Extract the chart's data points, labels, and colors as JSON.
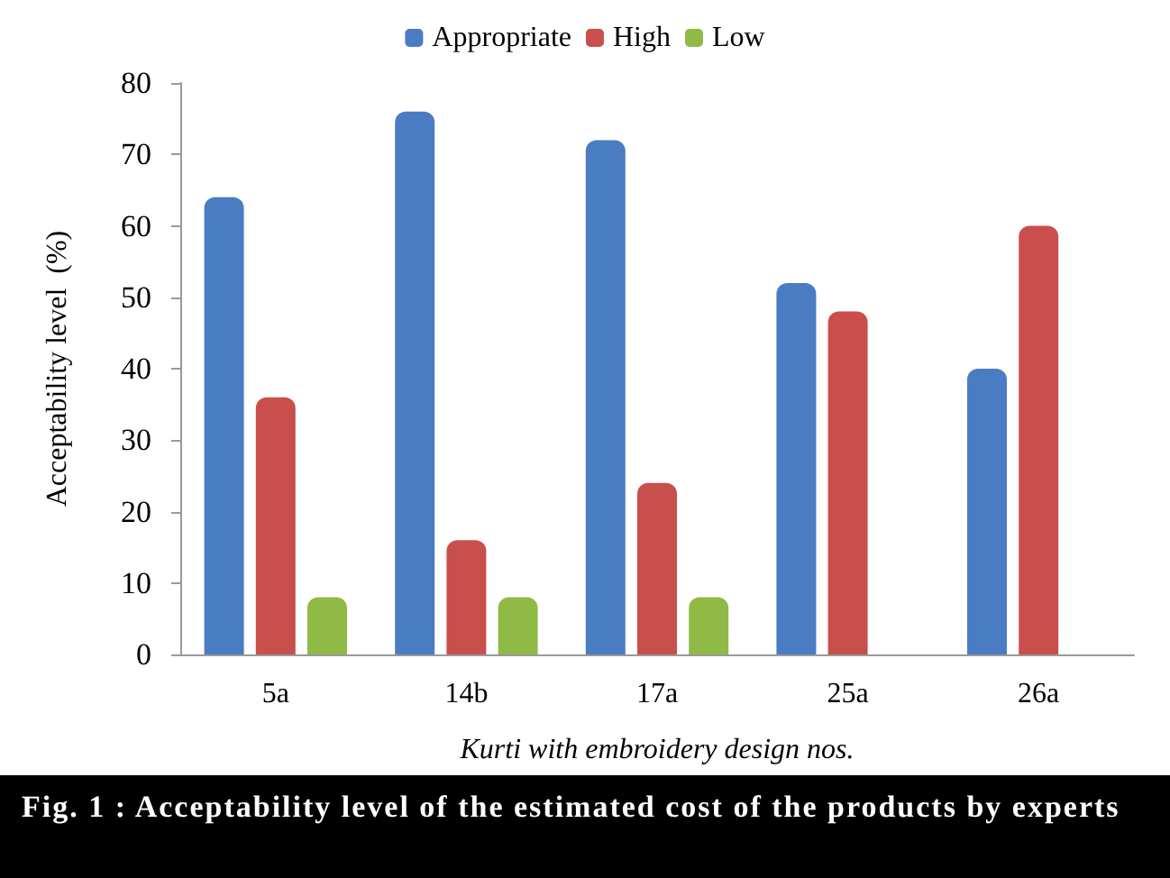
{
  "chart_data": {
    "type": "bar",
    "xlabel": "Kurti with embroidery design nos.",
    "ylabel": "Acceptability level  (%)",
    "annotations": [
      "Fig. 1 :  Acceptability level of the estimated cost of the products by experts"
    ],
    "categories": [
      "5a",
      "14b",
      "17a",
      "25a",
      "26a"
    ],
    "series": [
      {
        "name": "Appropriate",
        "color": "#4a7cc4",
        "values": [
          64,
          76,
          72,
          52,
          40
        ]
      },
      {
        "name": "High",
        "color": "#c94f4c",
        "values": [
          36,
          16,
          24,
          48,
          60
        ]
      },
      {
        "name": "Low",
        "color": "#8fba45",
        "values": [
          8,
          8,
          8,
          0,
          0
        ]
      }
    ],
    "ylim": [
      0,
      80
    ],
    "yticks": [
      0,
      10,
      20,
      30,
      40,
      50,
      60,
      70,
      80
    ],
    "grid": false,
    "legend": "top"
  }
}
